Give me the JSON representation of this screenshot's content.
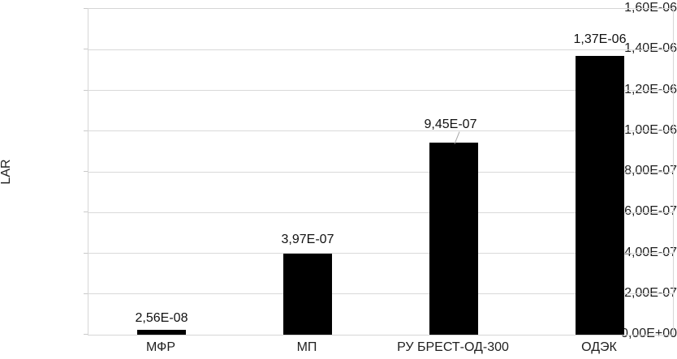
{
  "chart_data": {
    "type": "bar",
    "title": "",
    "xlabel": "",
    "ylabel": "LAR",
    "ylim": [
      0,
      1.6e-06
    ],
    "grid": true,
    "legend": "none",
    "bar_color": "#000000",
    "gridline_color": "#d9d9d9",
    "axis_color": "#d6d6d6",
    "text_color": "#1f1f1f",
    "categories": [
      "МФР",
      "МП",
      "РУ БРЕСТ-ОД-300",
      "ОДЭК"
    ],
    "values": [
      2.56e-08,
      3.97e-07,
      9.45e-07,
      1.37e-06
    ],
    "value_labels": [
      "2,56E-08",
      "3,97E-07",
      "9,45E-07",
      "1,37E-06"
    ],
    "y_tick_labels": [
      "0,00E+00",
      "2,00E-07",
      "4,00E-07",
      "6,00E-07",
      "8,00E-07",
      "1,00E-06",
      "1,20E-06",
      "1,40E-06",
      "1,60E-06"
    ],
    "label_leader_index": 2
  }
}
